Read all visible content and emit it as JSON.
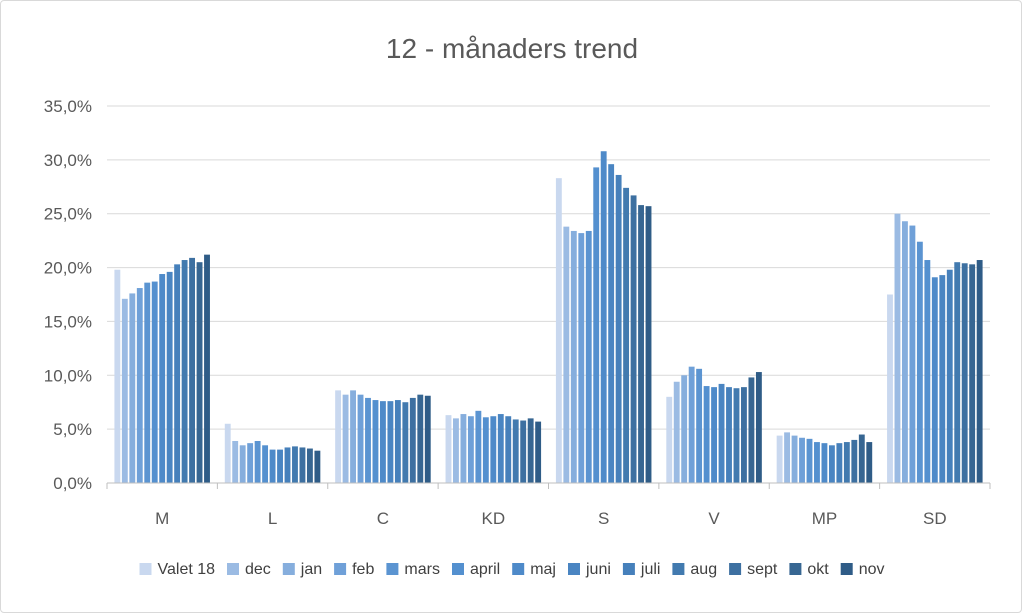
{
  "chart_data": {
    "type": "bar",
    "title": "12 - månaders trend",
    "xlabel": "",
    "ylabel": "",
    "ylim": [
      0,
      35
    ],
    "y_tick_labels": [
      "0,0%",
      "5,0%",
      "10,0%",
      "15,0%",
      "20,0%",
      "25,0%",
      "30,0%",
      "35,0%"
    ],
    "grid": true,
    "legend_position": "bottom",
    "categories": [
      "M",
      "L",
      "C",
      "KD",
      "S",
      "V",
      "MP",
      "SD"
    ],
    "series": [
      {
        "name": "Valet 18",
        "color": "#c9d8ef",
        "values": [
          19.8,
          5.5,
          8.6,
          6.3,
          28.3,
          8.0,
          4.4,
          17.5
        ]
      },
      {
        "name": "dec",
        "color": "#9bbbe3",
        "values": [
          17.1,
          3.9,
          8.2,
          6.0,
          23.8,
          9.4,
          4.7,
          25.0
        ]
      },
      {
        "name": "jan",
        "color": "#86aedd",
        "values": [
          17.6,
          3.5,
          8.6,
          6.4,
          23.4,
          10.0,
          4.4,
          24.3
        ]
      },
      {
        "name": "feb",
        "color": "#6fa0d8",
        "values": [
          18.1,
          3.7,
          8.2,
          6.2,
          23.2,
          10.8,
          4.2,
          23.9
        ]
      },
      {
        "name": "mars",
        "color": "#5b94d1",
        "values": [
          18.6,
          3.9,
          7.9,
          6.7,
          23.4,
          10.6,
          4.1,
          22.4
        ]
      },
      {
        "name": "april",
        "color": "#5490cf",
        "values": [
          18.7,
          3.5,
          7.7,
          6.1,
          29.3,
          9.0,
          3.8,
          20.7
        ]
      },
      {
        "name": "maj",
        "color": "#4e8ac9",
        "values": [
          19.4,
          3.1,
          7.6,
          6.2,
          30.8,
          8.9,
          3.7,
          19.1
        ]
      },
      {
        "name": "juni",
        "color": "#4a85c2",
        "values": [
          19.6,
          3.1,
          7.6,
          6.4,
          29.6,
          9.2,
          3.5,
          19.3
        ]
      },
      {
        "name": "juli",
        "color": "#4680bb",
        "values": [
          20.3,
          3.3,
          7.7,
          6.2,
          28.6,
          8.9,
          3.7,
          19.8
        ]
      },
      {
        "name": "aug",
        "color": "#427aaf",
        "values": [
          20.7,
          3.4,
          7.5,
          5.9,
          27.4,
          8.8,
          3.8,
          20.5
        ]
      },
      {
        "name": "sept",
        "color": "#3d70a1",
        "values": [
          20.9,
          3.3,
          7.9,
          5.8,
          26.7,
          8.9,
          4.0,
          20.4
        ]
      },
      {
        "name": "okt",
        "color": "#376692",
        "values": [
          20.5,
          3.2,
          8.2,
          6.0,
          25.8,
          9.8,
          4.5,
          20.3
        ]
      },
      {
        "name": "nov",
        "color": "#2f5c87",
        "values": [
          21.2,
          3.0,
          8.1,
          5.7,
          25.7,
          10.3,
          3.8,
          20.7
        ]
      }
    ]
  }
}
